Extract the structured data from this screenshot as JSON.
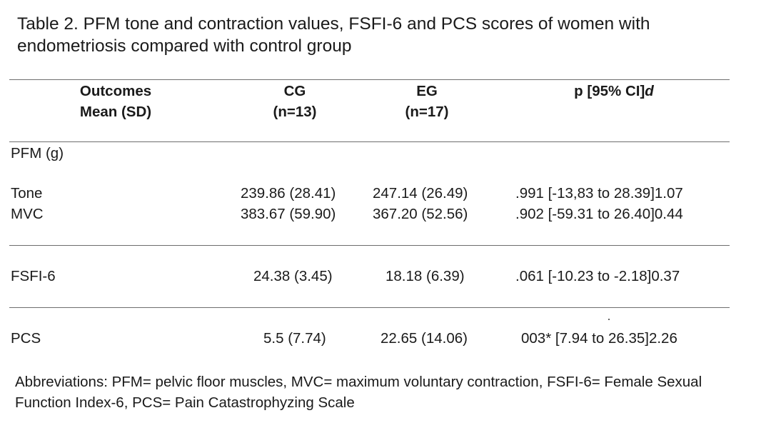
{
  "caption": "Table 2. PFM tone and contraction values, FSFI-6 and PCS scores of women with endometriosis compared with control group",
  "headers": {
    "outcomes_line1": "Outcomes",
    "outcomes_line2": "Mean (SD)",
    "cg_line1": "CG",
    "cg_line2": "(n=13)",
    "eg_line1": "EG",
    "eg_line2": "(n=17)",
    "p_label": "p [95% CI]",
    "p_effect": "d"
  },
  "sections": {
    "pfm_label": "PFM (g)"
  },
  "rows": [
    {
      "label": "Tone",
      "cg": "239.86 (28.41)",
      "eg": "247.14 (26.49)",
      "p": ".991 [-13,83 to 28.39]1.07"
    },
    {
      "label": "MVC",
      "cg": "383.67 (59.90)",
      "eg": "367.20 (52.56)",
      "p": ".902 [-59.31 to 26.40]0.44"
    },
    {
      "label": "FSFI-6",
      "cg": "24.38 (3.45)",
      "eg": "18.18 (6.39)",
      "p": ".061 [-10.23 to -2.18]0.37"
    },
    {
      "label": "PCS",
      "cg": "5.5 (7.74)",
      "eg": "22.65 (14.06)",
      "p": "003* [7.94 to 26.35]2.26"
    }
  ],
  "footnote": "Abbreviations: PFM= pelvic floor muscles, MVC= maximum voluntary contraction, FSFI-6= Female Sexual Function Index-6, PCS= Pain Catastrophyzing Scale"
}
